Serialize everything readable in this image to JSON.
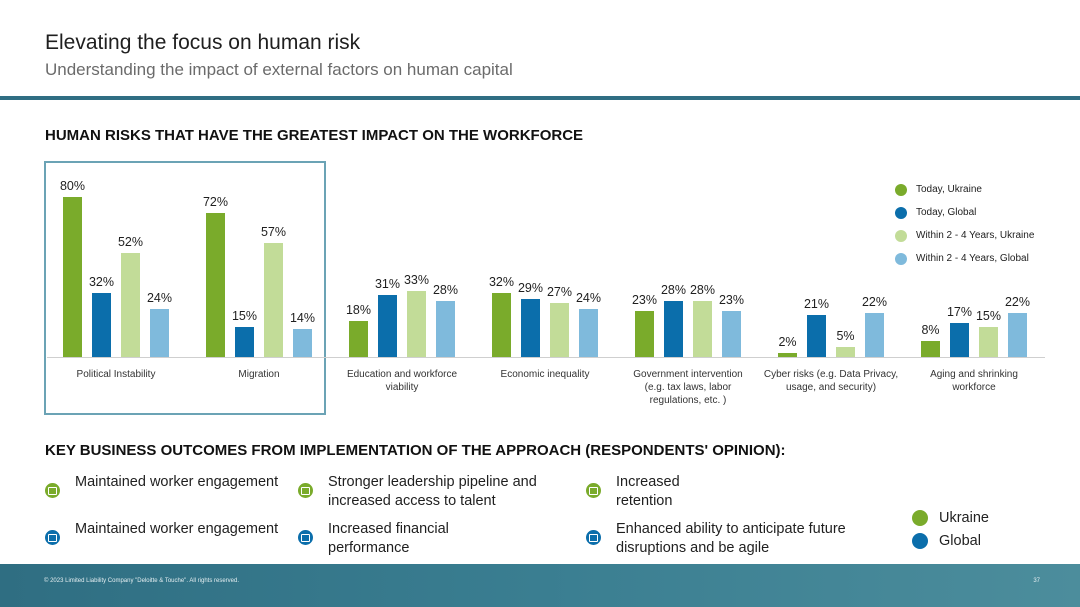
{
  "header": {
    "title": "Elevating the focus on human risk",
    "subtitle": "Understanding the impact of external factors on human capital"
  },
  "chart_section_title": "HUMAN RISKS THAT HAVE THE GREATEST IMPACT ON THE WORKFORCE",
  "chart_data": {
    "type": "bar",
    "title": "HUMAN RISKS THAT HAVE THE GREATEST IMPACT ON THE WORKFORCE",
    "categories": [
      "Political Instability",
      "Migration",
      "Education and workforce viability",
      "Economic inequality",
      "Government intervention (e.g. tax laws, labor regulations, etc. )",
      "Cyber risks (e.g. Data Privacy, usage, and security)",
      "Aging and shrinking workforce"
    ],
    "category_lines": [
      [
        "Political Instability"
      ],
      [
        "Migration"
      ],
      [
        "Education and workforce",
        "viability"
      ],
      [
        "Economic inequality"
      ],
      [
        "Government intervention",
        "(e.g. tax laws, labor",
        "regulations, etc. )"
      ],
      [
        "Cyber risks (e.g. Data Privacy,",
        "usage, and security)"
      ],
      [
        "Aging and shrinking",
        "workforce"
      ]
    ],
    "series": [
      {
        "name": "Today, Ukraine",
        "color": "#7aab2b",
        "values": [
          80,
          72,
          18,
          32,
          23,
          2,
          8
        ]
      },
      {
        "name": "Today, Global",
        "color": "#0b6eab",
        "values": [
          32,
          15,
          31,
          29,
          28,
          21,
          17
        ]
      },
      {
        "name": "Within 2 - 4 Years, Ukraine",
        "color": "#c2dc98",
        "values": [
          52,
          57,
          33,
          27,
          28,
          5,
          15
        ]
      },
      {
        "name": "Within 2 - 4 Years, Global",
        "color": "#7fbadc",
        "values": [
          24,
          14,
          28,
          24,
          23,
          22,
          22
        ]
      }
    ],
    "value_suffix": "%",
    "ylim": [
      0,
      80
    ],
    "legend_position": "right",
    "grid": false,
    "highlighted_categories": [
      "Political Instability",
      "Migration"
    ]
  },
  "outcomes_title": "KEY BUSINESS OUTCOMES FROM IMPLEMENTATION OF THE APPROACH (RESPONDENTS' OPINION):",
  "outcomes": {
    "ukraine": [
      "Maintained worker engagement",
      "Stronger leadership pipeline and increased access to talent",
      "Increased retention"
    ],
    "global": [
      "Maintained worker engagement",
      "Increased financial performance",
      "Enhanced ability to anticipate future disruptions and be agile"
    ]
  },
  "outcomes_legend": [
    {
      "name": "Ukraine",
      "color": "#7aab2b"
    },
    {
      "name": "Global",
      "color": "#0b6eab"
    }
  ],
  "footer": {
    "copyright": "© 2023  Limited Liability Company \"Deloitte & Touche\".  All rights reserved.",
    "page_number": "37"
  }
}
